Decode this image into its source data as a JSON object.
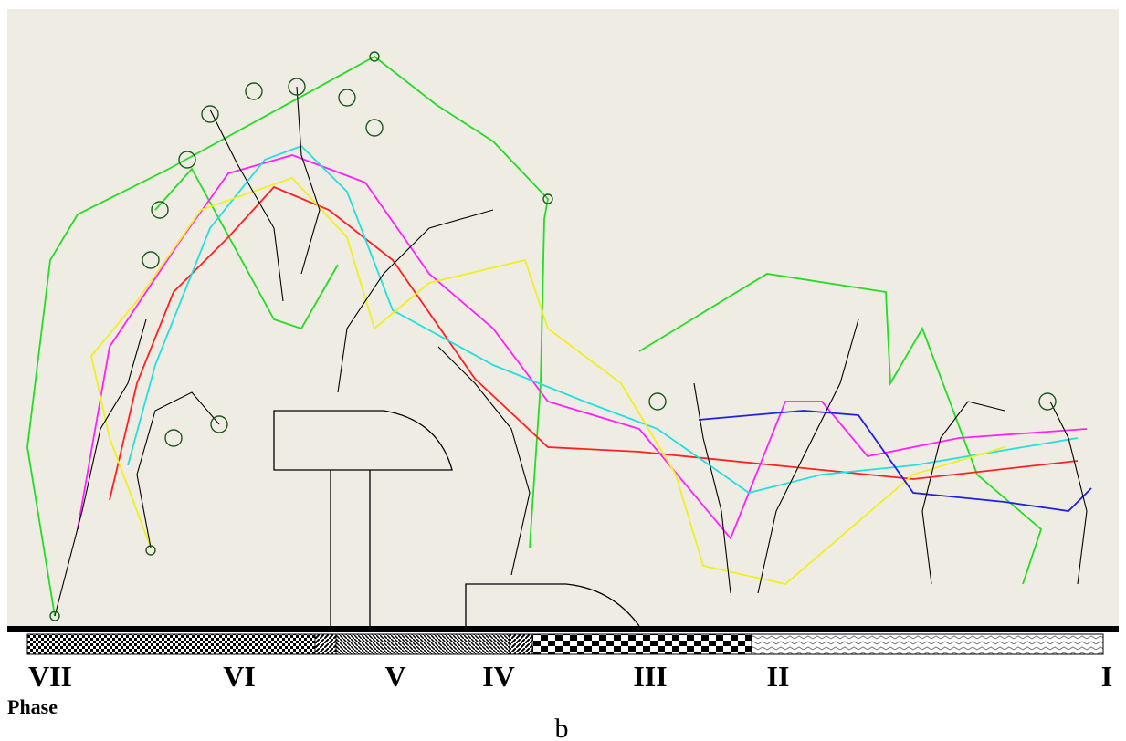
{
  "phases": [
    "VII",
    "VI",
    "V",
    "IV",
    "III",
    "II",
    "I"
  ],
  "axis_label": "Phase",
  "caption": "b"
}
